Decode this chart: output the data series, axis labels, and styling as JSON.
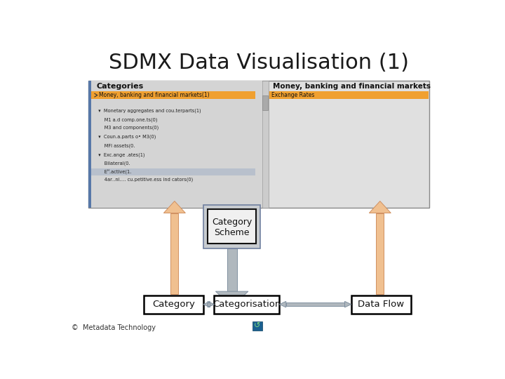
{
  "title": "SDMX Data Visualisation (1)",
  "title_fontsize": 22,
  "bg_color": "#ffffff",
  "arrow_orange": "#f0c090",
  "arrow_orange_edge": "#d09060",
  "arrow_gray": "#b0b8be",
  "arrow_gray_edge": "#8090a0",
  "box_border": "#000000",
  "box_bg": "#ffffff",
  "cs_box_bg": "#c8ccd0",
  "cs_inner_border": "#111111",
  "footer_text": "©  Metadata Technology",
  "category_scheme_label": "Category\nScheme",
  "category_label": "Category",
  "categorisation_label": "Categorisation",
  "dataflow_label": "Data Flow",
  "left_panel_title": "Categories",
  "right_panel_title": "Money, banking and financial markets",
  "ss_bg": "#e0e0e0",
  "ss_left_bg": "#d4d4d4",
  "ss_border": "#888888",
  "ss_blue_strip": "#5878a8",
  "orange_row": "#f0a030",
  "scroll_bg": "#cccccc",
  "scroll_thumb": "#aaaaaa"
}
